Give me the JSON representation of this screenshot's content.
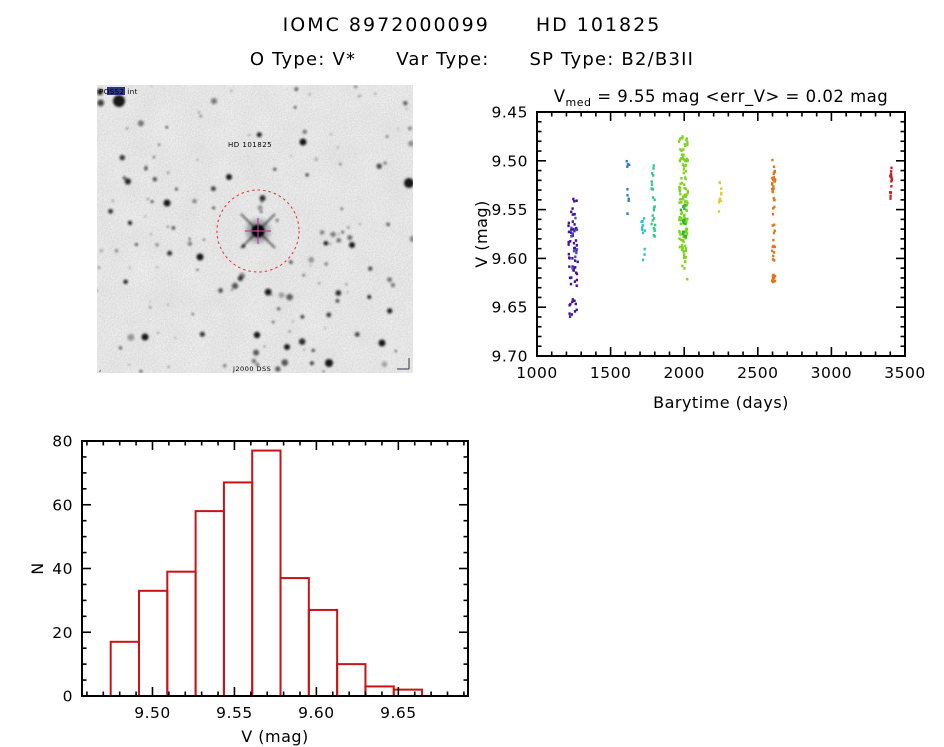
{
  "header": {
    "source_id": "IOMC 8972000099",
    "source_name": "HD 101825",
    "otype": "O Type: V*",
    "vartype": "Var Type:",
    "sptype": "SP Type: B2/B3II"
  },
  "finder": {
    "survey_label": "POSS2 int",
    "target_label": "HD 101825",
    "bottom_label": "J2000 DSS",
    "circle_color": "#e03030",
    "crosshair_color": "#b23cb2"
  },
  "chart_data": [
    {
      "type": "scatter",
      "panel": "lightcurve",
      "title_prefix": "V",
      "title_subscript": "med",
      "title_suffix": " = 9.55 mag <err_V> = 0.02 mag",
      "xlabel": "Barytime (days)",
      "ylabel": "V (mag)",
      "xlim": [
        1000,
        3500
      ],
      "ylim": [
        9.45,
        9.7
      ],
      "y_inverted": true,
      "xticks": [
        1000,
        1500,
        2000,
        2500,
        3000,
        3500
      ],
      "yticks": [
        9.45,
        9.5,
        9.55,
        9.6,
        9.65,
        9.7
      ],
      "x_minor_step": 100,
      "y_minor_step": 0.01,
      "marker_px": 2.3,
      "clusters": [
        {
          "name": "epoch-1",
          "color": "#45109e",
          "t": 1245,
          "t_jitter": 32,
          "segments": [
            [
              9.535,
              9.558,
              7
            ],
            [
              9.562,
              9.602,
              26
            ],
            [
              9.6,
              9.628,
              16
            ],
            [
              9.64,
              9.66,
              11
            ]
          ]
        },
        {
          "name": "epoch-1b",
          "color": "#3c50c8",
          "t": 1252,
          "t_jitter": 20,
          "segments": [
            [
              9.558,
              9.615,
              10
            ]
          ]
        },
        {
          "name": "epoch-2",
          "color": "#2e7fc8",
          "t": 1620,
          "t_jitter": 16,
          "segments": [
            [
              9.498,
              9.512,
              4
            ],
            [
              9.52,
              9.558,
              5
            ]
          ]
        },
        {
          "name": "epoch-3",
          "color": "#2cc4cc",
          "t": 1722,
          "t_jitter": 13,
          "segments": [
            [
              9.555,
              9.578,
              9
            ],
            [
              9.588,
              9.603,
              3
            ]
          ]
        },
        {
          "name": "epoch-4",
          "color": "#2fca8a",
          "t": 1790,
          "t_jitter": 13,
          "segments": [
            [
              9.503,
              9.515,
              4
            ],
            [
              9.52,
              9.58,
              20
            ]
          ]
        },
        {
          "name": "epoch-5",
          "color": "#7cd41e",
          "t": 1995,
          "t_jitter": 30,
          "segments": [
            [
              9.474,
              9.52,
              38
            ],
            [
              9.52,
              9.6,
              85
            ],
            [
              9.603,
              9.628,
              5
            ]
          ]
        },
        {
          "name": "epoch-5b",
          "color": "#2eb437",
          "t": 1993,
          "t_jitter": 18,
          "segments": [
            [
              9.545,
              9.578,
              16
            ]
          ]
        },
        {
          "name": "epoch-6",
          "color": "#e2ca38",
          "t": 2245,
          "t_jitter": 9,
          "segments": [
            [
              9.517,
              9.552,
              10
            ]
          ]
        },
        {
          "name": "epoch-7",
          "color": "#e0761e",
          "t": 2608,
          "t_jitter": 11,
          "segments": [
            [
              9.497,
              9.532,
              22
            ],
            [
              9.535,
              9.625,
              30
            ]
          ]
        },
        {
          "name": "epoch-8",
          "color": "#cc1d1d",
          "t": 3405,
          "t_jitter": 8,
          "segments": [
            [
              9.507,
              9.528,
              11
            ],
            [
              9.532,
              9.542,
              4
            ]
          ]
        }
      ]
    },
    {
      "type": "bar",
      "panel": "histogram",
      "xlabel": "V (mag)",
      "ylabel": "N",
      "bin_start": 9.4745,
      "bin_width": 0.01727,
      "values": [
        17,
        33,
        39,
        58,
        67,
        77,
        37,
        27,
        10,
        3,
        2
      ],
      "bar_color": "#c81414",
      "xlim": [
        9.457,
        9.6925
      ],
      "ylim": [
        0,
        80
      ],
      "xticks": [
        9.5,
        9.55,
        9.6,
        9.65
      ],
      "yticks": [
        0,
        20,
        40,
        60,
        80
      ],
      "x_minor_step": 0.01,
      "y_minor_step": 5
    }
  ]
}
